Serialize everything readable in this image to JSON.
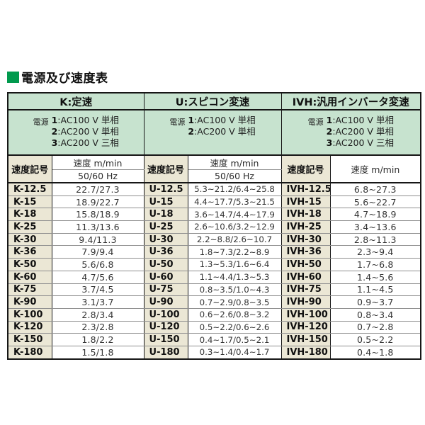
{
  "title": "電源及び速度表",
  "colors": {
    "header_green": "#c7e3cf",
    "label_cream": "#ebe7d5",
    "title_square_green": "#019a4e",
    "border_dark": "#161616",
    "row_divider_grey": "#8f8f8f"
  },
  "columns": {
    "speed_code": "速度記号",
    "speed_unit": "速度 m/min",
    "hz": "50/60 Hz"
  },
  "sections": [
    {
      "heading": "K:定速",
      "power_label": "電源",
      "power_lines": [
        "1:AC100 V 単相",
        "2:AC200 V 単相",
        "3:AC200 V 三相"
      ],
      "rows": [
        {
          "code": "K-12.5",
          "value": "22.7/27.3"
        },
        {
          "code": "K-15",
          "value": "18.9/22.7"
        },
        {
          "code": "K-18",
          "value": "15.8/18.9"
        },
        {
          "code": "K-25",
          "value": "11.3/13.6"
        },
        {
          "code": "K-30",
          "value": "9.4/11.3"
        },
        {
          "code": "K-36",
          "value": "7.9/9.4"
        },
        {
          "code": "K-50",
          "value": "5.6/6.8"
        },
        {
          "code": "K-60",
          "value": "4.7/5.6"
        },
        {
          "code": "K-75",
          "value": "3.7/4.5"
        },
        {
          "code": "K-90",
          "value": "3.1/3.7"
        },
        {
          "code": "K-100",
          "value": "2.8/3.4"
        },
        {
          "code": "K-120",
          "value": "2.3/2.8"
        },
        {
          "code": "K-150",
          "value": "1.8/2.2"
        },
        {
          "code": "K-180",
          "value": "1.5/1.8"
        }
      ]
    },
    {
      "heading": "U:スピコン変速",
      "power_label": "電源",
      "power_lines": [
        "1:AC100 V 単相",
        "2:AC200 V 単相"
      ],
      "rows": [
        {
          "code": "U-12.5",
          "value": "5.3~21.2/6.4~25.8"
        },
        {
          "code": "U-15",
          "value": "4.4~17.7/5.3~21.5"
        },
        {
          "code": "U-18",
          "value": "3.6~14.7/4.4~17.9"
        },
        {
          "code": "U-25",
          "value": "2.6~10.6/3.2~12.9"
        },
        {
          "code": "U-30",
          "value": "2.2~8.8/2.6~10.7"
        },
        {
          "code": "U-36",
          "value": "1.8~7.3/2.2~8.9"
        },
        {
          "code": "U-50",
          "value": "1.3~5.3/1.6~6.4"
        },
        {
          "code": "U-60",
          "value": "1.1~4.4/1.3~5.3"
        },
        {
          "code": "U-75",
          "value": "0.8~3.5/1.0~4.3"
        },
        {
          "code": "U-90",
          "value": "0.7~2.9/0.8~3.5"
        },
        {
          "code": "U-100",
          "value": "0.6~2.6/0.8~3.2"
        },
        {
          "code": "U-120",
          "value": "0.5~2.2/0.6~2.6"
        },
        {
          "code": "U-150",
          "value": "0.4~1.7/0.5~2.1"
        },
        {
          "code": "U-180",
          "value": "0.3~1.4/0.4~1.7"
        }
      ]
    },
    {
      "heading": "IVH:汎用インバータ変速",
      "power_label": "電源",
      "power_lines": [
        "1:AC100 V 単相",
        "2:AC200 V 単相",
        "3:AC200 V 三相"
      ],
      "rows": [
        {
          "code": "IVH-12.5",
          "value": "6.8~27.3"
        },
        {
          "code": "IVH-15",
          "value": "5.6~22.7"
        },
        {
          "code": "IVH-18",
          "value": "4.7~18.9"
        },
        {
          "code": "IVH-25",
          "value": "3.4~13.6"
        },
        {
          "code": "IVH-30",
          "value": "2.8~11.3"
        },
        {
          "code": "IVH-36",
          "value": "2.3~9.4"
        },
        {
          "code": "IVH-50",
          "value": "1.7~6.8"
        },
        {
          "code": "IVH-60",
          "value": "1.4~5.6"
        },
        {
          "code": "IVH-75",
          "value": "1.1~4.5"
        },
        {
          "code": "IVH-90",
          "value": "0.9~3.7"
        },
        {
          "code": "IVH-100",
          "value": "0.8~3.4"
        },
        {
          "code": "IVH-120",
          "value": "0.7~2.8"
        },
        {
          "code": "IVH-150",
          "value": "0.5~2.2"
        },
        {
          "code": "IVH-180",
          "value": "0.4~1.8"
        }
      ]
    }
  ]
}
